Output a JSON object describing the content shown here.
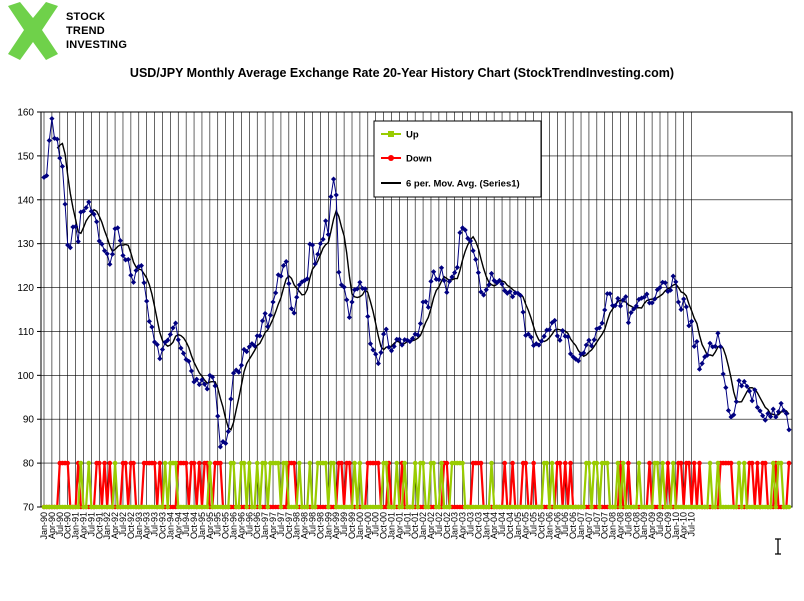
{
  "logo": {
    "lines": [
      "STOCK",
      "TREND",
      "INVESTING"
    ],
    "color": "#6fd14a"
  },
  "chart_data": {
    "type": "line",
    "title": "USD/JPY Monthly Average Exchange Rate 20-Year History Chart (StockTrendInvesting.com)",
    "ylim": [
      70,
      160
    ],
    "yticks": [
      70,
      80,
      90,
      100,
      110,
      120,
      130,
      140,
      150,
      160
    ],
    "grid": true,
    "legend_position": "top-right inside",
    "x_tick_labels": [
      "Jan-90",
      "Apr-90",
      "Jul-90",
      "Oct-90",
      "Jan-91",
      "Apr-91",
      "Jul-91",
      "Oct-91",
      "Jan-92",
      "Apr-92",
      "Jul-92",
      "Oct-92",
      "Jan-93",
      "Apr-93",
      "Jul-93",
      "Oct-93",
      "Jan-94",
      "Apr-94",
      "Jul-94",
      "Oct-94",
      "Jan-95",
      "Apr-95",
      "Jul-95",
      "Oct-95",
      "Jan-96",
      "Apr-96",
      "Jul-96",
      "Oct-96",
      "Jan-97",
      "Apr-97",
      "Jul-97",
      "Oct-97",
      "Jan-98",
      "Apr-98",
      "Jul-98",
      "Oct-98",
      "Jan-99",
      "Apr-99",
      "Jul-99",
      "Oct-99",
      "Jan-00",
      "Apr-00",
      "Jul-00",
      "Oct-00",
      "Jan-01",
      "Apr-01",
      "Jul-01",
      "Oct-01",
      "Jan-02",
      "Apr-02",
      "Jul-02",
      "Oct-02",
      "Jan-03",
      "Apr-03",
      "Jul-03",
      "Oct-03",
      "Jan-04",
      "Apr-04",
      "Jul-04",
      "Oct-04",
      "Jan-05",
      "Apr-05",
      "Jul-05",
      "Oct-05",
      "Jan-06",
      "Apr-06",
      "Jul-06",
      "Oct-06",
      "Jan-07",
      "Apr-07",
      "Jul-07",
      "Oct-07",
      "Jan-08",
      "Apr-08",
      "Jul-08",
      "Oct-08",
      "Jan-09",
      "Apr-09",
      "Jul-09",
      "Oct-09",
      "Jan-10",
      "Apr-10",
      "Jul-10"
    ],
    "colors": {
      "rate": "#000080",
      "up": "#99cc00",
      "down": "#ff0000",
      "ma": "#000000"
    },
    "series": [
      {
        "name": "Series1",
        "kind": "rate",
        "values": [
          145.1,
          145.5,
          153.5,
          158.5,
          154.0,
          153.8,
          149.5,
          147.6,
          139.0,
          129.7,
          129.1,
          133.8,
          133.9,
          130.5,
          137.2,
          137.4,
          138.2,
          139.5,
          137.4,
          136.7,
          135.0,
          130.6,
          129.9,
          128.4,
          127.7,
          125.3,
          127.6,
          133.4,
          133.6,
          130.7,
          127.3,
          126.3,
          126.4,
          122.8,
          121.2,
          123.9,
          124.8,
          125.0,
          121.1,
          116.9,
          112.3,
          111.0,
          107.6,
          107.0,
          103.8,
          105.9,
          107.5,
          108.0,
          109.3,
          110.8,
          111.9,
          108.1,
          106.2,
          105.0,
          103.6,
          103.2,
          101.0,
          98.5,
          99.1,
          97.9,
          99.0,
          98.0,
          96.9,
          100.0,
          99.6,
          97.6,
          90.7,
          83.7,
          84.9,
          84.5,
          87.2,
          94.6,
          100.5,
          101.2,
          100.7,
          102.3,
          105.9,
          105.4,
          106.5,
          107.2,
          106.7,
          109.0,
          109.0,
          112.4,
          114.1,
          111.1,
          113.7,
          116.7,
          118.8,
          122.9,
          122.6,
          125.0,
          125.9,
          120.9,
          115.2,
          114.2,
          117.8,
          120.6,
          121.3,
          121.6,
          122.0,
          129.9,
          129.7,
          125.4,
          127.6,
          130.0,
          131.0,
          135.2,
          132.1,
          140.7,
          144.7,
          141.1,
          123.5,
          120.6,
          120.1,
          117.2,
          113.2,
          116.7,
          119.5,
          119.7,
          121.2,
          119.8,
          119.7,
          113.4,
          107.2,
          105.8,
          104.8,
          102.7,
          105.2,
          109.4,
          110.5,
          106.4,
          105.6,
          106.6,
          108.2,
          108.2,
          106.9,
          108.1,
          108.0,
          107.7,
          108.4,
          109.4,
          109.2,
          111.8,
          116.7,
          116.8,
          115.5,
          121.4,
          123.6,
          121.9,
          121.8,
          124.5,
          121.6,
          118.9,
          121.4,
          122.4,
          123.4,
          124.6,
          132.5,
          133.6,
          133.1,
          131.2,
          130.6,
          128.4,
          126.4,
          123.4,
          119.0,
          118.3,
          119.5,
          120.6,
          123.2,
          121.6,
          121.1,
          121.6,
          120.8,
          119.3,
          118.7,
          119.1,
          117.9,
          118.8,
          118.7,
          118.2,
          114.4,
          109.1,
          109.4,
          108.7,
          106.8,
          107.2,
          106.9,
          107.8,
          108.9,
          110.3,
          110.4,
          112.0,
          112.5,
          109.0,
          108.0,
          110.2,
          108.9,
          108.8,
          104.9,
          104.2,
          103.7,
          103.3,
          104.8,
          105.1,
          106.9,
          108.0,
          106.7,
          108.1,
          110.6,
          110.8,
          111.9,
          114.9,
          118.6,
          118.6,
          115.9,
          115.9,
          117.5,
          115.8,
          117.2,
          117.9,
          112.0,
          114.3,
          115.1,
          115.8,
          117.3,
          117.6,
          117.8,
          118.5,
          116.5,
          116.5,
          117.4,
          119.5,
          120.0,
          121.2,
          121.1,
          119.1,
          119.4,
          122.6,
          121.3,
          116.7,
          115.0,
          117.4,
          115.6,
          111.3,
          112.3,
          106.6,
          107.7,
          101.4,
          102.7,
          104.2,
          104.6,
          107.3,
          106.5,
          106.6,
          109.6,
          106.5,
          100.3,
          97.2,
          92.0,
          90.5,
          91.0,
          94.0,
          98.8,
          97.6,
          98.6,
          97.5,
          96.4,
          94.2,
          96.7,
          92.7,
          91.9,
          90.8,
          89.8,
          91.3,
          90.6,
          92.3,
          90.5,
          91.7,
          93.6,
          92.0,
          91.3,
          87.6
        ]
      },
      {
        "name": "6 per. Mov. Avg. (Series1)",
        "kind": "ma"
      },
      {
        "name": "Up",
        "kind": "up"
      },
      {
        "name": "Down",
        "kind": "down"
      }
    ]
  }
}
